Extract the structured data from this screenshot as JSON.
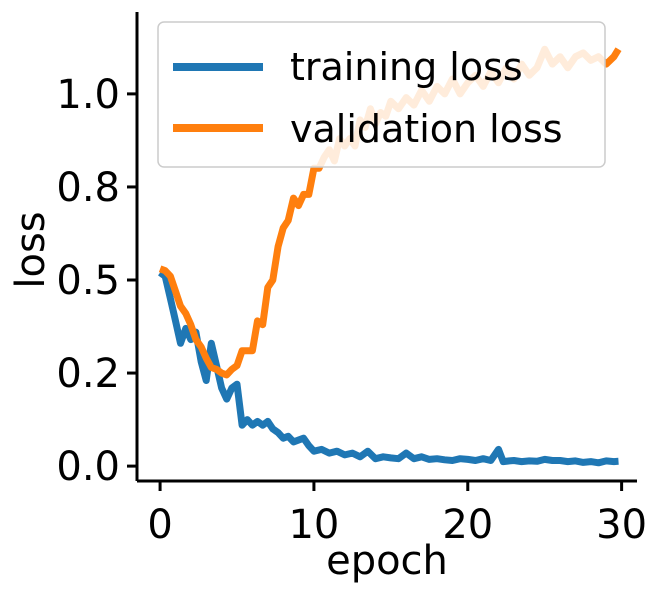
{
  "chart_data": {
    "type": "line",
    "title": "",
    "xlabel": "epoch",
    "ylabel": "loss",
    "xlim": [
      -1.5,
      31
    ],
    "ylim": [
      -0.04,
      1.22
    ],
    "xticks": [
      0,
      10,
      20,
      30
    ],
    "xtick_labels": [
      "0",
      "10",
      "20",
      "30"
    ],
    "yticks": [
      0.0,
      0.25,
      0.5,
      0.75,
      1.0
    ],
    "ytick_labels": [
      "0.0",
      "0.2",
      "0.5",
      "0.8",
      "1.0"
    ],
    "grid": false,
    "legend_position": "top",
    "series": [
      {
        "name": "training loss",
        "color": "#1f77b4",
        "x": [
          0,
          0.33,
          0.67,
          1.0,
          1.33,
          1.67,
          2.0,
          2.33,
          2.67,
          3.0,
          3.33,
          3.67,
          4.0,
          4.33,
          4.67,
          5.0,
          5.33,
          5.67,
          6.0,
          6.33,
          6.67,
          7.0,
          7.33,
          7.67,
          8.0,
          8.33,
          8.67,
          9.0,
          9.33,
          9.67,
          10.0,
          10.5,
          11.0,
          11.5,
          12.0,
          12.5,
          13.0,
          13.5,
          14.0,
          14.5,
          15.0,
          15.5,
          16.0,
          16.5,
          17.0,
          17.5,
          18.0,
          18.5,
          19.0,
          19.5,
          20.0,
          20.5,
          21.0,
          21.5,
          22.0,
          22.3,
          22.7,
          23.0,
          23.5,
          24.0,
          24.5,
          25.0,
          25.5,
          26.0,
          26.5,
          27.0,
          27.5,
          28.0,
          28.5,
          29.0,
          29.5,
          29.8
        ],
        "values": [
          0.52,
          0.51,
          0.45,
          0.39,
          0.33,
          0.37,
          0.34,
          0.36,
          0.28,
          0.23,
          0.33,
          0.27,
          0.21,
          0.18,
          0.21,
          0.22,
          0.11,
          0.125,
          0.11,
          0.12,
          0.11,
          0.12,
          0.1,
          0.09,
          0.075,
          0.08,
          0.065,
          0.07,
          0.075,
          0.055,
          0.04,
          0.045,
          0.035,
          0.04,
          0.03,
          0.035,
          0.025,
          0.04,
          0.02,
          0.025,
          0.022,
          0.02,
          0.035,
          0.02,
          0.025,
          0.018,
          0.02,
          0.017,
          0.015,
          0.02,
          0.018,
          0.015,
          0.02,
          0.015,
          0.045,
          0.012,
          0.014,
          0.015,
          0.012,
          0.014,
          0.013,
          0.018,
          0.015,
          0.015,
          0.012,
          0.014,
          0.01,
          0.012,
          0.009,
          0.014,
          0.012,
          0.013
        ]
      },
      {
        "name": "validation loss",
        "color": "#ff7f0e",
        "x": [
          0,
          0.33,
          0.67,
          1.0,
          1.33,
          1.67,
          2.0,
          2.33,
          2.67,
          3.0,
          3.33,
          3.67,
          4.0,
          4.33,
          4.67,
          5.0,
          5.33,
          5.67,
          6.0,
          6.33,
          6.67,
          7.0,
          7.33,
          7.67,
          8.0,
          8.33,
          8.67,
          9.0,
          9.33,
          9.67,
          10.0,
          10.33,
          10.67,
          11.0,
          11.33,
          11.67,
          12.0,
          12.33,
          12.67,
          13.0,
          13.33,
          13.67,
          14.0,
          14.33,
          14.67,
          15.0,
          15.5,
          16.0,
          16.5,
          17.0,
          17.5,
          18.0,
          18.5,
          19.0,
          19.5,
          20.0,
          20.5,
          21.0,
          21.5,
          22.0,
          22.5,
          23.0,
          23.5,
          24.0,
          24.5,
          25.0,
          25.5,
          26.0,
          26.5,
          27.0,
          27.5,
          28.0,
          28.5,
          29.0,
          29.5,
          29.8
        ],
        "values": [
          0.53,
          0.525,
          0.51,
          0.47,
          0.43,
          0.41,
          0.38,
          0.34,
          0.32,
          0.29,
          0.265,
          0.26,
          0.25,
          0.245,
          0.26,
          0.27,
          0.31,
          0.31,
          0.31,
          0.39,
          0.38,
          0.48,
          0.5,
          0.59,
          0.64,
          0.66,
          0.72,
          0.7,
          0.73,
          0.73,
          0.8,
          0.8,
          0.83,
          0.85,
          0.82,
          0.88,
          0.86,
          0.88,
          0.86,
          0.93,
          0.91,
          0.96,
          0.92,
          0.95,
          0.94,
          0.98,
          0.96,
          0.99,
          0.97,
          1.01,
          0.98,
          1.02,
          1.0,
          1.04,
          1.0,
          1.03,
          1.05,
          1.02,
          1.06,
          1.03,
          1.07,
          1.04,
          1.08,
          1.05,
          1.07,
          1.12,
          1.08,
          1.1,
          1.07,
          1.1,
          1.11,
          1.09,
          1.1,
          1.08,
          1.1,
          1.12
        ]
      }
    ]
  }
}
